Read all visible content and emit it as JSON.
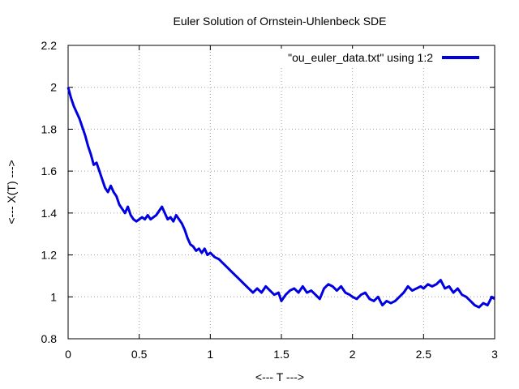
{
  "chart_data": {
    "type": "line",
    "title": "Euler Solution of Ornstein-Uhlenbeck SDE",
    "xlabel": "<--- T --->",
    "ylabel": "<--- X(T) --->",
    "xlim": [
      0,
      3
    ],
    "ylim": [
      0.8,
      2.2
    ],
    "xticks": [
      "0",
      "0.5",
      "1",
      "1.5",
      "2",
      "2.5",
      "3"
    ],
    "yticks": [
      "0.8",
      "1",
      "1.2",
      "1.4",
      "1.6",
      "1.8",
      "2",
      "2.2"
    ],
    "grid": true,
    "legend_position": "top-right",
    "series_color": "#0000e0",
    "series": [
      {
        "name": "\"ou_euler_data.txt\" using 1:2",
        "x": [
          0,
          0.02,
          0.04,
          0.06,
          0.08,
          0.1,
          0.12,
          0.14,
          0.16,
          0.18,
          0.2,
          0.22,
          0.24,
          0.26,
          0.28,
          0.3,
          0.32,
          0.34,
          0.36,
          0.38,
          0.4,
          0.42,
          0.44,
          0.46,
          0.48,
          0.5,
          0.52,
          0.54,
          0.56,
          0.58,
          0.6,
          0.62,
          0.64,
          0.66,
          0.68,
          0.7,
          0.72,
          0.74,
          0.76,
          0.78,
          0.8,
          0.82,
          0.84,
          0.86,
          0.88,
          0.9,
          0.92,
          0.94,
          0.96,
          0.98,
          1.0,
          1.03,
          1.06,
          1.09,
          1.12,
          1.15,
          1.18,
          1.21,
          1.24,
          1.27,
          1.3,
          1.33,
          1.36,
          1.39,
          1.42,
          1.45,
          1.48,
          1.5,
          1.53,
          1.56,
          1.59,
          1.62,
          1.65,
          1.68,
          1.71,
          1.74,
          1.77,
          1.8,
          1.83,
          1.86,
          1.89,
          1.92,
          1.95,
          1.98,
          2.0,
          2.03,
          2.06,
          2.09,
          2.12,
          2.15,
          2.18,
          2.21,
          2.24,
          2.27,
          2.3,
          2.33,
          2.36,
          2.39,
          2.42,
          2.45,
          2.48,
          2.5,
          2.53,
          2.56,
          2.59,
          2.62,
          2.65,
          2.68,
          2.71,
          2.74,
          2.77,
          2.8,
          2.83,
          2.86,
          2.89,
          2.92,
          2.95,
          2.98,
          3.0
        ],
        "y": [
          2.0,
          1.95,
          1.91,
          1.88,
          1.85,
          1.81,
          1.77,
          1.72,
          1.68,
          1.63,
          1.64,
          1.6,
          1.56,
          1.52,
          1.5,
          1.53,
          1.5,
          1.48,
          1.44,
          1.42,
          1.4,
          1.43,
          1.39,
          1.37,
          1.36,
          1.37,
          1.38,
          1.37,
          1.39,
          1.37,
          1.38,
          1.39,
          1.41,
          1.43,
          1.4,
          1.37,
          1.38,
          1.36,
          1.39,
          1.37,
          1.35,
          1.32,
          1.28,
          1.25,
          1.24,
          1.22,
          1.23,
          1.21,
          1.23,
          1.2,
          1.21,
          1.19,
          1.18,
          1.16,
          1.14,
          1.12,
          1.1,
          1.08,
          1.06,
          1.04,
          1.02,
          1.04,
          1.02,
          1.05,
          1.03,
          1.01,
          1.02,
          0.98,
          1.01,
          1.03,
          1.04,
          1.02,
          1.05,
          1.02,
          1.03,
          1.01,
          0.99,
          1.04,
          1.06,
          1.05,
          1.03,
          1.05,
          1.02,
          1.01,
          1.0,
          0.99,
          1.01,
          1.02,
          0.99,
          0.98,
          1.0,
          0.96,
          0.98,
          0.97,
          0.98,
          1.0,
          1.02,
          1.05,
          1.03,
          1.04,
          1.05,
          1.04,
          1.06,
          1.05,
          1.06,
          1.08,
          1.04,
          1.05,
          1.02,
          1.04,
          1.01,
          1.0,
          0.98,
          0.96,
          0.95,
          0.97,
          0.96,
          1.0,
          0.99
        ]
      }
    ]
  }
}
